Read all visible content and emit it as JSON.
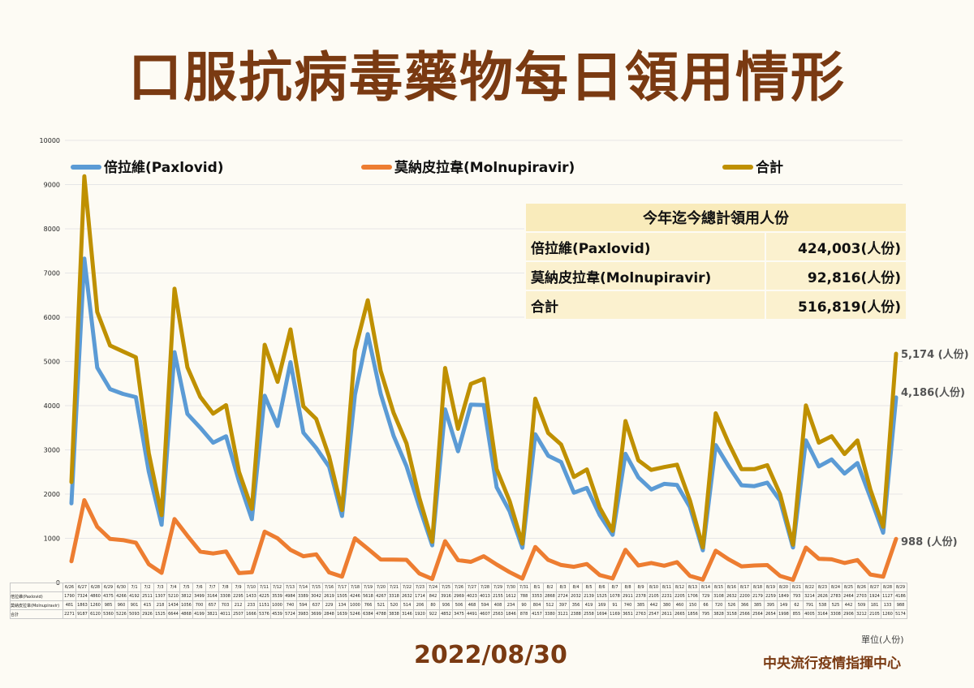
{
  "title": "口服抗病毒藥物每日領用情形",
  "date": "2022/08/30",
  "organization": "中央流行疫情指揮中心",
  "unit_label": "單位(人份)",
  "summary_table": {
    "header": "今年迄今總計領用人份",
    "rows": [
      {
        "label": "倍拉維(Paxlovid)",
        "value": "424,003(人份)"
      },
      {
        "label": "莫納皮拉韋(Molnupiravir)",
        "value": "92,816(人份)"
      },
      {
        "label": "合計",
        "value": "516,819(人份)"
      }
    ]
  },
  "end_labels": {
    "total": "5,174 (人份)",
    "paxlovid": "4,186(人份)",
    "molnupiravir": "988 (人份)"
  },
  "colors": {
    "paxlovid": "#5b9bd5",
    "molnupiravir": "#ed7d31",
    "total": "#bf9000",
    "title": "#7a3a12"
  },
  "chart_data": {
    "type": "line",
    "ylim": [
      0,
      10000
    ],
    "yticks": [
      "0",
      "1000",
      "2000",
      "3000",
      "4000",
      "5000",
      "6000",
      "7000",
      "8000",
      "9000",
      "10000"
    ],
    "categories": [
      "6/26",
      "6/27",
      "6/28",
      "6/29",
      "6/30",
      "7/1",
      "7/2",
      "7/3",
      "7/4",
      "7/5",
      "7/6",
      "7/7",
      "7/8",
      "7/9",
      "7/10",
      "7/11",
      "7/12",
      "7/13",
      "7/14",
      "7/15",
      "7/16",
      "7/17",
      "7/18",
      "7/19",
      "7/20",
      "7/21",
      "7/22",
      "7/23",
      "7/24",
      "7/25",
      "7/26",
      "7/27",
      "7/28",
      "7/29",
      "7/30",
      "7/31",
      "8/1",
      "8/2",
      "8/3",
      "8/4",
      "8/5",
      "8/6",
      "8/7",
      "8/8",
      "8/9",
      "8/10",
      "8/11",
      "8/12",
      "8/13",
      "8/14",
      "8/15",
      "8/16",
      "8/17",
      "8/18",
      "8/19",
      "8/20",
      "8/21",
      "8/22",
      "8/23",
      "8/24",
      "8/25",
      "8/26",
      "8/27",
      "8/28",
      "8/29"
    ],
    "series": [
      {
        "name": "倍拉維(Paxlovid)",
        "short": "倍拉維(Paxlovid)",
        "values": [
          1790,
          7324,
          4860,
          4375,
          4266,
          4192,
          2511,
          1307,
          5210,
          3812,
          3499,
          3164,
          3308,
          2295,
          1433,
          4225,
          3539,
          4984,
          3389,
          3042,
          2619,
          1505,
          4246,
          5618,
          4267,
          3318,
          2632,
          1714,
          842,
          3916,
          2969,
          4023,
          4013,
          2155,
          1612,
          788,
          3353,
          2868,
          2724,
          2032,
          2139,
          1525,
          1078,
          2911,
          2378,
          2105,
          2231,
          2205,
          1706,
          729,
          3108,
          2632,
          2200,
          2179,
          2259,
          1849,
          793,
          3214,
          2626,
          2783,
          2464,
          2703,
          1924,
          1127,
          4186
        ]
      },
      {
        "name": "莫納皮拉韋(Molnupiravir)",
        "short": "莫納皮拉韋(Molnupiravir)",
        "values": [
          481,
          1863,
          1260,
          985,
          960,
          901,
          415,
          218,
          1434,
          1056,
          700,
          657,
          703,
          212,
          233,
          1151,
          1000,
          740,
          594,
          637,
          229,
          134,
          1000,
          766,
          521,
          520,
          514,
          206,
          80,
          936,
          506,
          468,
          594,
          408,
          234,
          90,
          804,
          512,
          397,
          356,
          419,
          169,
          91,
          740,
          385,
          442,
          380,
          460,
          150,
          66,
          720,
          526,
          366,
          385,
          395,
          149,
          62,
          791,
          538,
          525,
          442,
          509,
          181,
          133,
          988
        ]
      },
      {
        "name": "合計",
        "short": "合計",
        "values": [
          2271,
          9187,
          6120,
          5360,
          5226,
          5093,
          2926,
          1525,
          6644,
          4868,
          4199,
          3821,
          4011,
          2507,
          1666,
          5376,
          4539,
          5724,
          3983,
          3699,
          2848,
          1639,
          5246,
          6384,
          4788,
          3838,
          3146,
          1920,
          922,
          4852,
          3475,
          4491,
          4607,
          2563,
          1846,
          878,
          4157,
          3380,
          3121,
          2388,
          2558,
          1694,
          1169,
          3651,
          2763,
          2547,
          2611,
          2665,
          1856,
          795,
          3828,
          3158,
          2566,
          2564,
          2654,
          1998,
          855,
          4005,
          3164,
          3308,
          2906,
          3212,
          2105,
          1260,
          5174
        ]
      }
    ]
  }
}
